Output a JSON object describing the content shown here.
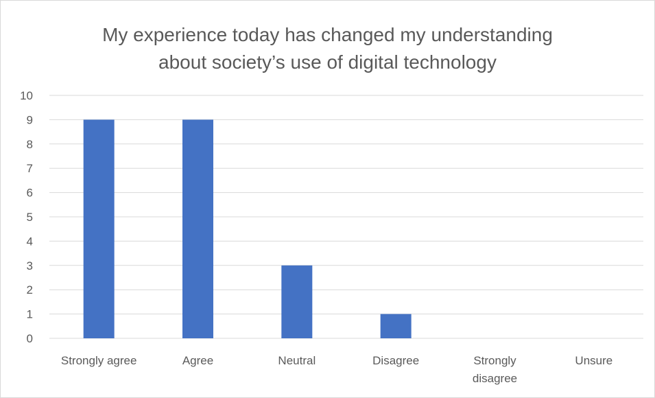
{
  "chart_data": {
    "type": "bar",
    "title_lines": [
      "My experience today has changed my understanding",
      "about society’s use of digital technology"
    ],
    "categories": [
      [
        "Strongly agree"
      ],
      [
        "Agree"
      ],
      [
        "Neutral"
      ],
      [
        "Disagree"
      ],
      [
        "Strongly",
        "disagree"
      ],
      [
        "Unsure"
      ]
    ],
    "values": [
      9,
      9,
      3,
      1,
      0,
      0
    ],
    "ylim": [
      0,
      10
    ],
    "yticks": [
      "0",
      "1",
      "2",
      "3",
      "4",
      "5",
      "6",
      "7",
      "8",
      "9",
      "10"
    ],
    "grid": true,
    "legend": "none",
    "bar_color": "#4472c4",
    "gridline_color": "#d9d9d9",
    "text_color": "#595959"
  }
}
